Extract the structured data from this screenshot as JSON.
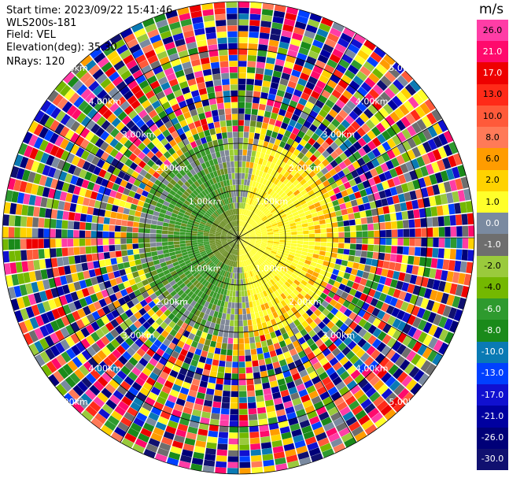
{
  "header": {
    "start_time": "Start time: 2023/09/22 15:41:46",
    "instrument": "WLS200s-181",
    "field": "Field: VEL",
    "elevation": "Elevation(deg): 35.30",
    "nrays": "NRays: 120"
  },
  "range_rings": {
    "labels": [
      "1.00km",
      "2.00km",
      "3.00km",
      "4.00km",
      "5.00km"
    ],
    "max_range_km": 5.0
  },
  "rays": 120,
  "colorbar": {
    "unit": "m/s",
    "ticks": [
      "26.0",
      "21.0",
      "17.0",
      "13.0",
      "10.0",
      "8.0",
      "6.0",
      "2.0",
      "1.0",
      "0.0",
      "-1.0",
      "-2.0",
      "-4.0",
      "-6.0",
      "-8.0",
      "-10.0",
      "-13.0",
      "-17.0",
      "-21.0",
      "-26.0",
      "-30.0"
    ],
    "colors": [
      "#ff3da6",
      "#ff0a6c",
      "#ee0000",
      "#ff2a18",
      "#ff5a3a",
      "#ff7a58",
      "#ff9c00",
      "#ffd200",
      "#ffff2a",
      "#7a8aa0",
      "#6e6e6e",
      "#9aca3c",
      "#74b800",
      "#2e9a2e",
      "#1a8a1a",
      "#0a7ab4",
      "#0040ff",
      "#1010d0",
      "#0000a0",
      "#000078",
      "#101070"
    ]
  },
  "inner_field_colors": [
    "#ffd700",
    "#ffff33",
    "#ffea00",
    "#ffa500",
    "#ff8c00",
    "#808898",
    "#9acd32",
    "#6b8e23",
    "#3a9a2a",
    "#228b22"
  ]
}
